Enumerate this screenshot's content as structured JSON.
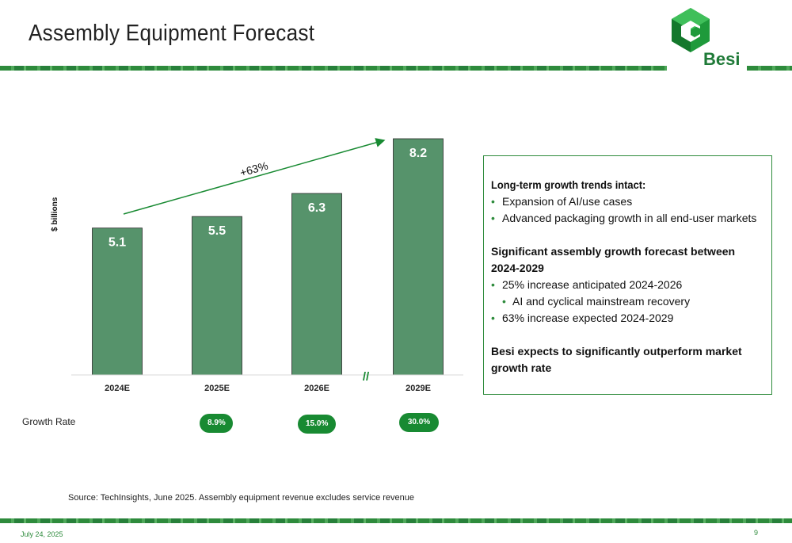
{
  "slide": {
    "title": "Assembly Equipment Forecast",
    "brand": "Besi",
    "date": "July 24, 2025",
    "page_number": "9",
    "source": "Source: TechInsights, June 2025. Assembly equipment revenue excludes service revenue"
  },
  "colors": {
    "bar": "#56936b",
    "accent": "#188a32",
    "stripe": "#2e8b3c"
  },
  "chart_data": {
    "type": "bar",
    "categories": [
      "2024E",
      "2025E",
      "2026E",
      "2029E"
    ],
    "values": [
      5.1,
      5.5,
      6.3,
      8.2
    ],
    "value_labels": [
      "5.1",
      "5.5",
      "6.3",
      "8.2"
    ],
    "ylabel": "$ billions",
    "ylim": [
      0,
      8.2
    ],
    "axis_break": "//",
    "trend_label": "+63%",
    "growth_rate_label": "Growth Rate",
    "growth_rates": [
      "",
      "8.9%",
      "15.0%",
      "30.0%"
    ],
    "grid": false
  },
  "textbox": {
    "heading1": "Long-term growth trends intact:",
    "bullets1": [
      "Expansion of AI/use cases",
      "Advanced packaging growth in all end-user markets"
    ],
    "heading2": "Significant assembly growth forecast between 2024-2029",
    "bullets2": [
      "25% increase anticipated 2024-2026",
      "AI and cyclical mainstream recovery",
      "63% increase expected 2024-2029"
    ],
    "heading3": "Besi expects to significantly outperform market growth rate"
  }
}
